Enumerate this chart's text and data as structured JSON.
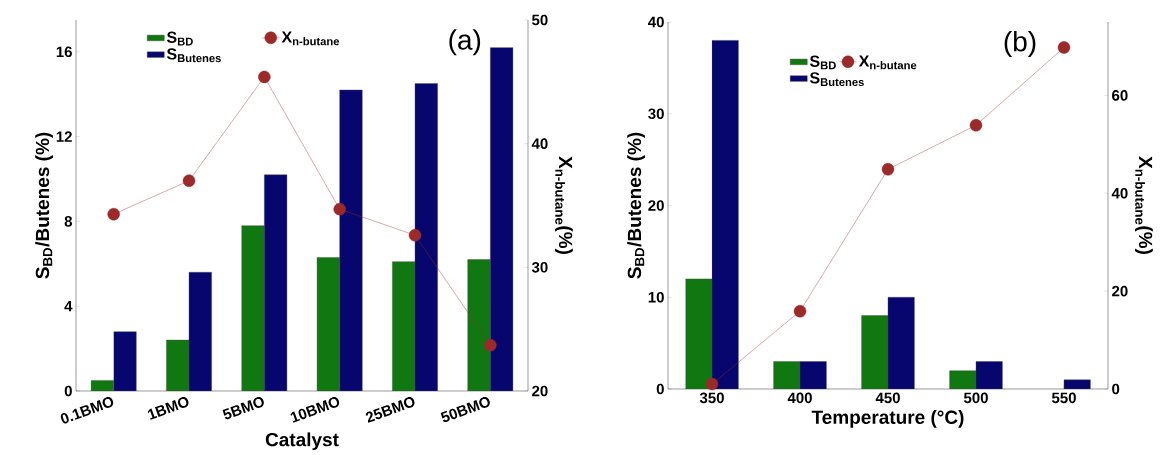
{
  "chart_data": [
    {
      "type": "bar",
      "xlabel": "Catalyst",
      "ylabel": "S$_{BD}$/Butenes (%)",
      "y2label": "X$_{n-butane}$(%)",
      "categories": [
        "0.1BMO",
        "1BMO",
        "5BMO",
        "10BMO",
        "25BMO",
        "50BMO"
      ],
      "series": [
        {
          "name": "S$_{BD}$",
          "color": "#117711",
          "values": [
            0.5,
            2.4,
            7.8,
            6.3,
            6.1,
            6.2
          ]
        },
        {
          "name": "S$_{Butenes}$",
          "color": "#06066e",
          "values": [
            2.8,
            5.6,
            10.2,
            14.2,
            14.5,
            16.2
          ]
        },
        {
          "name": "X$_{n-butane}$",
          "type": "line",
          "axis": "y2",
          "color": "#9b2a2a",
          "marker": "circle",
          "values": [
            34.3,
            37.0,
            45.4,
            34.7,
            32.6,
            23.7
          ]
        }
      ],
      "ylim": [
        0,
        17.5
      ],
      "yticks": [
        0,
        4,
        8,
        12,
        16
      ],
      "y2lim": [
        20,
        50
      ],
      "y2ticks": [
        20,
        30,
        40,
        50
      ],
      "legend": "top",
      "annotations": [
        "(a)"
      ]
    },
    {
      "type": "bar",
      "xlabel": "Temperature (°C)",
      "ylabel": "S$_{BD}$/Butenes (%)",
      "y2label": "X$_{n-butane}$(%)",
      "x": [
        350,
        400,
        450,
        500,
        550
      ],
      "series": [
        {
          "name": "S$_{BD}$",
          "color": "#117711",
          "values": [
            12,
            3,
            8,
            2,
            null
          ]
        },
        {
          "name": "S$_{Butenes}$",
          "color": "#06066e",
          "values": [
            38,
            3,
            10,
            3,
            1
          ]
        },
        {
          "name": "X$_{n-butane}$",
          "type": "line",
          "axis": "y2",
          "color": "#9b2a2a",
          "marker": "circle",
          "values": [
            1.0,
            15.9,
            44.9,
            53.9,
            69.8
          ]
        }
      ],
      "xlim": [
        325,
        575
      ],
      "xticks": [
        350,
        400,
        450,
        500,
        550
      ],
      "ylim": [
        0,
        40
      ],
      "yticks": [
        0,
        10,
        20,
        30,
        40
      ],
      "y2lim": [
        0,
        75
      ],
      "y2ticks": [
        0,
        20,
        40,
        60
      ],
      "legend": "top",
      "annotations": [
        "(b)"
      ]
    }
  ]
}
